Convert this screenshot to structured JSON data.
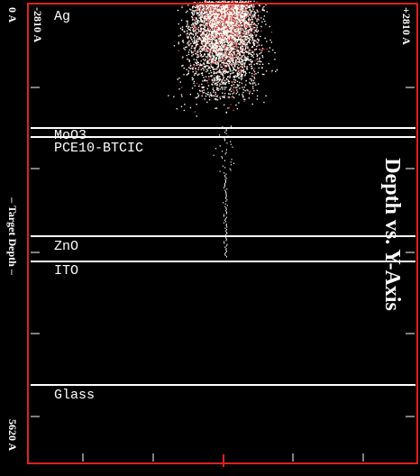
{
  "axis": {
    "top_label": "0 A",
    "bottom_label": "5620 A",
    "side_title": "– Target Depth –",
    "left_label": "-2810 A",
    "right_label": "+2810 A"
  },
  "title": "Depth vs. Y-Axis",
  "layers": [
    {
      "label": "Ag"
    },
    {
      "label": "MoO3"
    },
    {
      "label": "PCE10-BTCIC"
    },
    {
      "label": "ZnO"
    },
    {
      "label": "ITO"
    },
    {
      "label": "Glass"
    }
  ]
}
